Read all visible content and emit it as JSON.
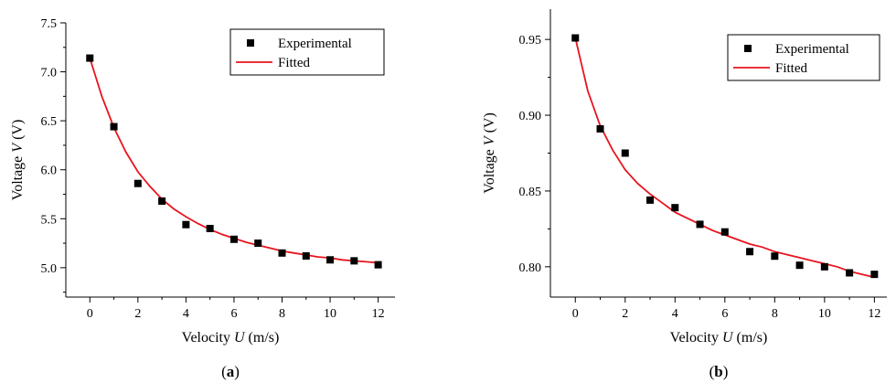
{
  "chart_data": [
    {
      "type": "scatter",
      "panel_label_open": "(",
      "panel_label_letter": "a",
      "panel_label_close": ")",
      "xlabel_prefix": "Velocity ",
      "xlabel_var": "U",
      "xlabel_suffix": " (m/s)",
      "ylabel_prefix": "Voltage ",
      "ylabel_var": "V",
      "ylabel_suffix": " (V)",
      "xlim": [
        -1,
        12.7
      ],
      "ylim": [
        4.7,
        7.5
      ],
      "x_ticks": [
        0,
        2,
        4,
        6,
        8,
        10,
        12
      ],
      "x_tick_labels": [
        "0",
        "2",
        "4",
        "6",
        "8",
        "10",
        "12"
      ],
      "y_ticks": [
        5.0,
        5.5,
        6.0,
        6.5,
        7.0,
        7.5
      ],
      "y_tick_labels": [
        "5.0",
        "5.5",
        "6.0",
        "6.5",
        "7.0",
        "7.5"
      ],
      "grid": false,
      "legend_position": "top-right",
      "series": [
        {
          "name": "Experimental",
          "kind": "markers",
          "color": "#000000",
          "x": [
            0,
            1,
            2,
            3,
            4,
            5,
            6,
            7,
            8,
            9,
            10,
            11,
            12
          ],
          "y": [
            7.14,
            6.44,
            5.86,
            5.68,
            5.44,
            5.4,
            5.29,
            5.25,
            5.15,
            5.12,
            5.08,
            5.07,
            5.03
          ]
        },
        {
          "name": "Fitted",
          "kind": "line",
          "color": "#e8141e",
          "x": [
            0,
            0.5,
            1,
            1.5,
            2,
            2.5,
            3,
            3.5,
            4,
            4.5,
            5,
            5.5,
            6,
            6.5,
            7,
            7.5,
            8,
            8.5,
            9,
            9.5,
            10,
            10.5,
            11,
            11.5,
            12
          ],
          "y": [
            7.14,
            6.75,
            6.43,
            6.18,
            5.98,
            5.83,
            5.7,
            5.6,
            5.52,
            5.45,
            5.39,
            5.34,
            5.3,
            5.26,
            5.23,
            5.2,
            5.17,
            5.15,
            5.13,
            5.11,
            5.1,
            5.08,
            5.07,
            5.06,
            5.05
          ]
        }
      ]
    },
    {
      "type": "scatter",
      "panel_label_open": "(",
      "panel_label_letter": "b",
      "panel_label_close": ")",
      "xlabel_prefix": "Velocity ",
      "xlabel_var": "U",
      "xlabel_suffix": " (m/s)",
      "ylabel_prefix": "Voltage ",
      "ylabel_var": "V",
      "ylabel_suffix": " (V)",
      "xlim": [
        -1,
        12.5
      ],
      "ylim": [
        0.78,
        0.97
      ],
      "x_ticks": [
        0,
        2,
        4,
        6,
        8,
        10,
        12
      ],
      "x_tick_labels": [
        "0",
        "2",
        "4",
        "6",
        "8",
        "10",
        "12"
      ],
      "y_ticks": [
        0.8,
        0.85,
        0.9,
        0.95
      ],
      "y_tick_labels": [
        "0.80",
        "0.85",
        "0.90",
        "0.95"
      ],
      "grid": false,
      "legend_position": "top-right",
      "series": [
        {
          "name": "Experimental",
          "kind": "markers",
          "color": "#000000",
          "x": [
            0,
            1,
            2,
            3,
            4,
            5,
            6,
            7,
            8,
            9,
            10,
            11,
            12
          ],
          "y": [
            0.951,
            0.891,
            0.875,
            0.844,
            0.839,
            0.828,
            0.823,
            0.81,
            0.807,
            0.801,
            0.8,
            0.796,
            0.795
          ]
        },
        {
          "name": "Fitted",
          "kind": "line",
          "color": "#e8141e",
          "x": [
            0,
            0.5,
            1,
            1.5,
            2,
            2.5,
            3,
            3.5,
            4,
            4.5,
            5,
            5.5,
            6,
            6.5,
            7,
            7.5,
            8,
            8.5,
            9,
            9.5,
            10,
            10.5,
            11,
            11.5,
            12
          ],
          "y": [
            0.951,
            0.916,
            0.893,
            0.877,
            0.864,
            0.855,
            0.848,
            0.842,
            0.836,
            0.832,
            0.828,
            0.824,
            0.821,
            0.818,
            0.815,
            0.813,
            0.81,
            0.808,
            0.806,
            0.804,
            0.802,
            0.8,
            0.797,
            0.795,
            0.793
          ]
        }
      ]
    }
  ]
}
